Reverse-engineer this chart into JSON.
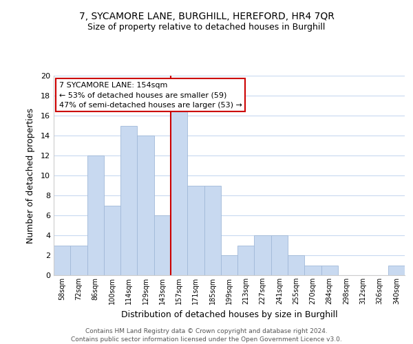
{
  "title": "7, SYCAMORE LANE, BURGHILL, HEREFORD, HR4 7QR",
  "subtitle": "Size of property relative to detached houses in Burghill",
  "xlabel": "Distribution of detached houses by size in Burghill",
  "ylabel": "Number of detached properties",
  "bin_labels": [
    "58sqm",
    "72sqm",
    "86sqm",
    "100sqm",
    "114sqm",
    "129sqm",
    "143sqm",
    "157sqm",
    "171sqm",
    "185sqm",
    "199sqm",
    "213sqm",
    "227sqm",
    "241sqm",
    "255sqm",
    "270sqm",
    "284sqm",
    "298sqm",
    "312sqm",
    "326sqm",
    "340sqm"
  ],
  "bar_heights": [
    3,
    3,
    12,
    7,
    15,
    14,
    6,
    17,
    9,
    9,
    2,
    3,
    4,
    4,
    2,
    1,
    1,
    0,
    0,
    0,
    1
  ],
  "bar_color": "#c8d9f0",
  "bar_edge_color": "#a0b8d8",
  "vline_index": 7,
  "vline_color": "#cc0000",
  "ylim": [
    0,
    20
  ],
  "yticks": [
    0,
    2,
    4,
    6,
    8,
    10,
    12,
    14,
    16,
    18,
    20
  ],
  "annotation_title": "7 SYCAMORE LANE: 154sqm",
  "annotation_line1": "← 53% of detached houses are smaller (59)",
  "annotation_line2": "47% of semi-detached houses are larger (53) →",
  "annotation_box_color": "#ffffff",
  "annotation_box_edgecolor": "#cc0000",
  "footer_line1": "Contains HM Land Registry data © Crown copyright and database right 2024.",
  "footer_line2": "Contains public sector information licensed under the Open Government Licence v3.0.",
  "background_color": "#ffffff",
  "grid_color": "#c8d9f0",
  "title_fontsize": 10,
  "subtitle_fontsize": 9
}
